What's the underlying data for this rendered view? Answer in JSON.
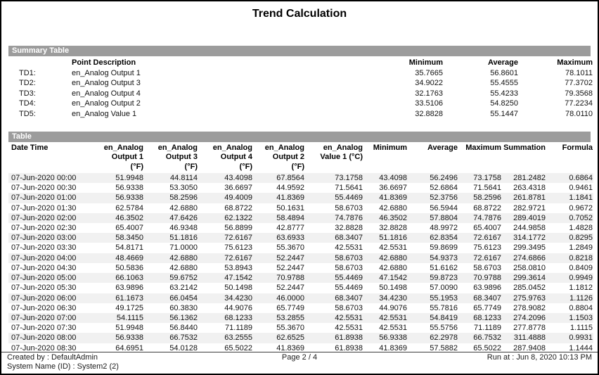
{
  "title": "Trend Calculation",
  "summary": {
    "section_label": "Summary Table",
    "headers": {
      "description": "Point Description",
      "min": "Minimum",
      "avg": "Average",
      "max": "Maximum"
    },
    "rows": [
      {
        "id": "TD1:",
        "description": "en_Analog Output 1",
        "min": "35.7665",
        "avg": "56.8601",
        "max": "78.1011"
      },
      {
        "id": "TD2:",
        "description": "en_Analog Output 3",
        "min": "34.9022",
        "avg": "55.4555",
        "max": "77.3702"
      },
      {
        "id": "TD3:",
        "description": "en_Analog Output 4",
        "min": "32.1763",
        "avg": "55.4233",
        "max": "79.3568"
      },
      {
        "id": "TD4:",
        "description": "en_Analog Output 2",
        "min": "33.5106",
        "avg": "54.8250",
        "max": "77.2234"
      },
      {
        "id": "TD5:",
        "description": "en_Analog Value 1",
        "min": "32.8828",
        "avg": "55.1447",
        "max": "78.0110"
      }
    ]
  },
  "table": {
    "section_label": "Table",
    "columns": [
      {
        "name": "date-time",
        "lines": [
          "Date Time"
        ]
      },
      {
        "name": "en-analog-output-1",
        "lines": [
          "en_Analog",
          "Output 1",
          "(°F)"
        ]
      },
      {
        "name": "en-analog-output-3",
        "lines": [
          "en_Analog",
          "Output 3",
          "(°F)"
        ]
      },
      {
        "name": "en-analog-output-4",
        "lines": [
          "en_Analog",
          "Output 4",
          "(°F)"
        ]
      },
      {
        "name": "en-analog-output-2",
        "lines": [
          "en_Analog",
          "Output 2",
          "(°F)"
        ]
      },
      {
        "name": "en-analog-value-1",
        "lines": [
          "en_Analog",
          "Value 1 (°C)"
        ]
      },
      {
        "name": "minimum",
        "lines": [
          "Minimum"
        ]
      },
      {
        "name": "average",
        "lines": [
          "Average"
        ]
      },
      {
        "name": "maximum",
        "lines": [
          "Maximum"
        ]
      },
      {
        "name": "summation",
        "lines": [
          "Summation"
        ]
      },
      {
        "name": "formula",
        "lines": [
          "Formula"
        ]
      }
    ],
    "rows": [
      [
        "07-Jun-2020 00:00",
        "51.9948",
        "44.8114",
        "43.4098",
        "67.8564",
        "73.1758",
        "43.4098",
        "56.2496",
        "73.1758",
        "281.2482",
        "0.6864"
      ],
      [
        "07-Jun-2020 00:30",
        "56.9338",
        "53.3050",
        "36.6697",
        "44.9592",
        "71.5641",
        "36.6697",
        "52.6864",
        "71.5641",
        "263.4318",
        "0.9461"
      ],
      [
        "07-Jun-2020 01:00",
        "56.9338",
        "58.2596",
        "49.4009",
        "41.8369",
        "55.4469",
        "41.8369",
        "52.3756",
        "58.2596",
        "261.8781",
        "1.1841"
      ],
      [
        "07-Jun-2020 01:30",
        "62.5784",
        "42.6880",
        "68.8722",
        "50.1631",
        "58.6703",
        "42.6880",
        "56.5944",
        "68.8722",
        "282.9721",
        "0.9672"
      ],
      [
        "07-Jun-2020 02:00",
        "46.3502",
        "47.6426",
        "62.1322",
        "58.4894",
        "74.7876",
        "46.3502",
        "57.8804",
        "74.7876",
        "289.4019",
        "0.7052"
      ],
      [
        "07-Jun-2020 02:30",
        "65.4007",
        "46.9348",
        "56.8899",
        "42.8777",
        "32.8828",
        "32.8828",
        "48.9972",
        "65.4007",
        "244.9858",
        "1.4828"
      ],
      [
        "07-Jun-2020 03:00",
        "58.3450",
        "51.1816",
        "72.6167",
        "63.6933",
        "68.3407",
        "51.1816",
        "62.8354",
        "72.6167",
        "314.1772",
        "0.8295"
      ],
      [
        "07-Jun-2020 03:30",
        "54.8171",
        "71.0000",
        "75.6123",
        "55.3670",
        "42.5531",
        "42.5531",
        "59.8699",
        "75.6123",
        "299.3495",
        "1.2849"
      ],
      [
        "07-Jun-2020 04:00",
        "48.4669",
        "42.6880",
        "72.6167",
        "52.2447",
        "58.6703",
        "42.6880",
        "54.9373",
        "72.6167",
        "274.6866",
        "0.8218"
      ],
      [
        "07-Jun-2020 04:30",
        "50.5836",
        "42.6880",
        "53.8943",
        "52.2447",
        "58.6703",
        "42.6880",
        "51.6162",
        "58.6703",
        "258.0810",
        "0.8409"
      ],
      [
        "07-Jun-2020 05:00",
        "66.1063",
        "59.6752",
        "47.1542",
        "70.9788",
        "55.4469",
        "47.1542",
        "59.8723",
        "70.9788",
        "299.3614",
        "0.9949"
      ],
      [
        "07-Jun-2020 05:30",
        "63.9896",
        "63.2142",
        "50.1498",
        "52.2447",
        "55.4469",
        "50.1498",
        "57.0090",
        "63.9896",
        "285.0452",
        "1.1812"
      ],
      [
        "07-Jun-2020 06:00",
        "61.1673",
        "66.0454",
        "34.4230",
        "46.0000",
        "68.3407",
        "34.4230",
        "55.1953",
        "68.3407",
        "275.9763",
        "1.1126"
      ],
      [
        "07-Jun-2020 06:30",
        "49.1725",
        "60.3830",
        "44.9076",
        "65.7749",
        "58.6703",
        "44.9076",
        "55.7816",
        "65.7749",
        "278.9082",
        "0.8804"
      ],
      [
        "07-Jun-2020 07:00",
        "54.1115",
        "56.1362",
        "68.1233",
        "53.2855",
        "42.5531",
        "42.5531",
        "54.8419",
        "68.1233",
        "274.2096",
        "1.1503"
      ],
      [
        "07-Jun-2020 07:30",
        "51.9948",
        "56.8440",
        "71.1189",
        "55.3670",
        "42.5531",
        "42.5531",
        "55.5756",
        "71.1189",
        "277.8778",
        "1.1115"
      ],
      [
        "07-Jun-2020 08:00",
        "56.9338",
        "66.7532",
        "63.2555",
        "62.6525",
        "61.8938",
        "56.9338",
        "62.2978",
        "66.7532",
        "311.4888",
        "0.9931"
      ],
      [
        "07-Jun-2020 08:30",
        "64.6951",
        "54.0128",
        "65.5022",
        "41.8369",
        "61.8938",
        "41.8369",
        "57.5882",
        "65.5022",
        "287.9408",
        "1.1444"
      ]
    ]
  },
  "footer": {
    "created_by": "Created by : DefaultAdmin",
    "system_name": "System Name (ID) : System2 (2)",
    "page": "Page 2 / 4",
    "run_at": "Run at : Jun 8, 2020 10:13 PM"
  },
  "colors": {
    "section_bar": "#9c9c9c",
    "row_stripe": "#f1f1f1",
    "page_border": "#000000"
  }
}
